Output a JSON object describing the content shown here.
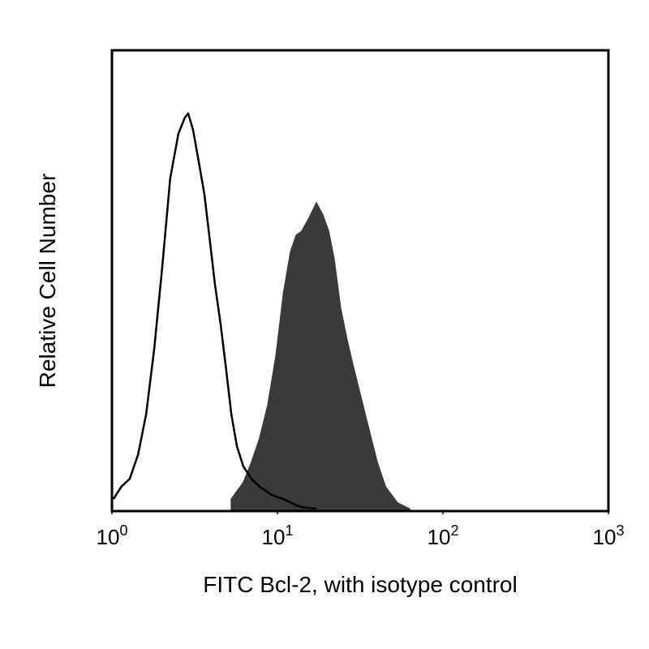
{
  "chart_data": {
    "type": "histogram-overlay",
    "xlabel": "FITC Bcl-2, with isotype control",
    "ylabel": "Relative Cell Number",
    "xscale": "log",
    "xlim": [
      1,
      1000
    ],
    "ylim": [
      0,
      100
    ],
    "xticks": [
      {
        "value": 1,
        "label": "10",
        "exponent": "0"
      },
      {
        "value": 10,
        "label": "10",
        "exponent": "1"
      },
      {
        "value": 100,
        "label": "10",
        "exponent": "2"
      },
      {
        "value": 1000,
        "label": "10",
        "exponent": "3"
      }
    ],
    "series": [
      {
        "color": "#3a3a3a",
        "filled": true,
        "x": [
          5.26,
          6.22,
          6.97,
          7.8,
          8.73,
          9.78,
          10.9,
          12.0,
          13.0,
          14.0,
          15.4,
          17.2,
          18.8,
          20.4,
          22.0,
          24.1,
          26.4,
          28.6,
          32.0,
          35.8,
          40.1,
          44.9,
          53.1,
          62.9
        ],
        "values": [
          2.6,
          6.2,
          10.6,
          15.8,
          22.9,
          33.5,
          47.5,
          56.3,
          59.9,
          60.7,
          63.4,
          66.9,
          64.3,
          60.7,
          54.6,
          44.0,
          37.0,
          31.7,
          24.6,
          17.6,
          10.6,
          5.3,
          1.8,
          0.5
        ]
      },
      {
        "color": "#000000",
        "filled": false,
        "x": [
          1.02,
          1.14,
          1.28,
          1.44,
          1.61,
          1.8,
          2.01,
          2.25,
          2.52,
          2.76,
          2.89,
          3.09,
          3.35,
          3.62,
          3.87,
          4.19,
          4.54,
          4.86,
          5.26,
          5.69,
          6.22,
          6.97,
          7.8,
          9.24,
          10.9,
          13.7,
          17.2
        ],
        "values": [
          2.6,
          5.3,
          7.0,
          12.3,
          21.1,
          35.2,
          52.8,
          72.2,
          81.9,
          85.4,
          86.3,
          82.7,
          75.7,
          68.7,
          59.9,
          49.3,
          40.5,
          31.7,
          21.1,
          14.1,
          9.7,
          7.0,
          5.3,
          3.5,
          2.6,
          0.9,
          0.5
        ]
      }
    ]
  }
}
